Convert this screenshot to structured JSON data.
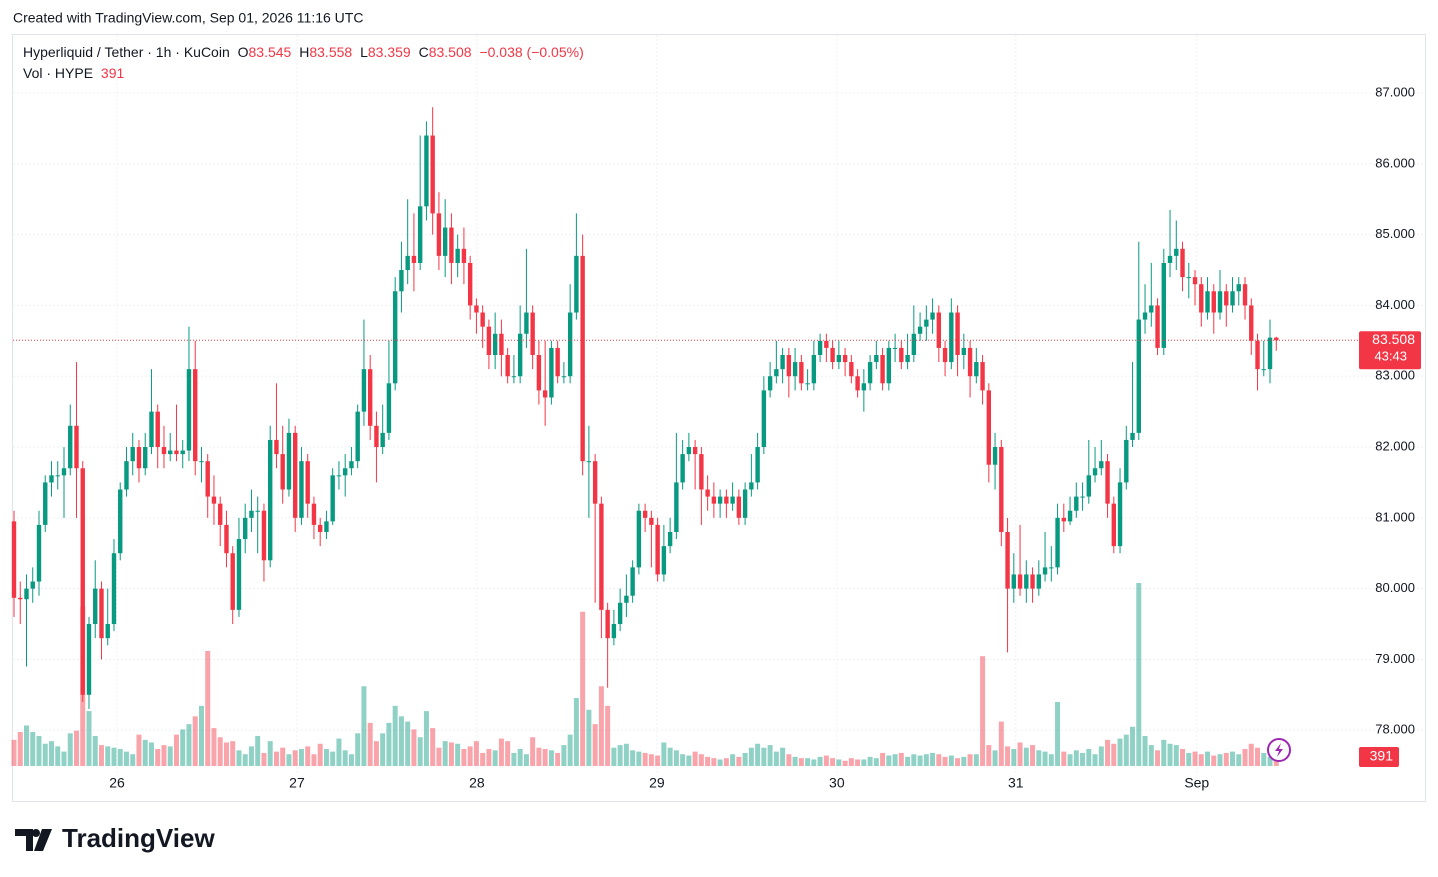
{
  "caption": "Created with TradingView.com, Sep 01, 2026 11:16 UTC",
  "brand": "TradingView",
  "chart_data": {
    "type": "candlestick",
    "title": "Hyperliquid / Tether · 1h · KuCoin",
    "ohlc_labels": [
      "O",
      "H",
      "L",
      "C"
    ],
    "change_label": "−0.038 (−0.05%)",
    "volume_title": "Vol · HYPE",
    "countdown": "43:43",
    "up_color": "#089981",
    "down_color": "#f23645",
    "grid": true,
    "ylim": [
      77.0,
      87.82
    ],
    "yticks": [
      {
        "value": 78,
        "label": "78.000"
      },
      {
        "value": 79,
        "label": "79.000"
      },
      {
        "value": 80,
        "label": "80.000"
      },
      {
        "value": 81,
        "label": "81.000"
      },
      {
        "value": 82,
        "label": "82.000"
      },
      {
        "value": 83,
        "label": "83.000"
      },
      {
        "value": 84,
        "label": "84.000"
      },
      {
        "value": 85,
        "label": "85.000"
      },
      {
        "value": 86,
        "label": "86.000"
      },
      {
        "value": 87,
        "label": "87.000"
      }
    ],
    "xlim": [
      -0.16,
      213.8
    ],
    "xticks": [
      {
        "value": 16.48,
        "label": "26"
      },
      {
        "value": 45.28,
        "label": "27"
      },
      {
        "value": 74.08,
        "label": "28"
      },
      {
        "value": 102.88,
        "label": "29"
      },
      {
        "value": 131.68,
        "label": "30"
      },
      {
        "value": 160.32,
        "label": "31"
      },
      {
        "value": 189.28,
        "label": "Sep"
      }
    ],
    "open": [
      80.95,
      79.87,
      79.85,
      80.0,
      80.1,
      80.9,
      81.5,
      81.6,
      81.6,
      81.7,
      82.3,
      81.7,
      78.5,
      79.5,
      80.0,
      79.3,
      79.5,
      80.5,
      81.4,
      81.8,
      82.0,
      81.7,
      82.0,
      82.5,
      82.0,
      81.9,
      81.95,
      81.9,
      81.95,
      83.1,
      81.8,
      81.8,
      81.3,
      81.2,
      80.9,
      80.5,
      79.7,
      80.7,
      81.0,
      81.1,
      81.1,
      80.4,
      82.1,
      81.9,
      81.4,
      82.2,
      81.0,
      81.8,
      81.2,
      80.9,
      80.8,
      80.95,
      81.6,
      81.6,
      81.7,
      81.8,
      82.5,
      83.1,
      82.3,
      82.0,
      82.2,
      82.9,
      84.2,
      84.5,
      84.7,
      84.6,
      85.4,
      86.4,
      85.3,
      84.7,
      85.1,
      84.6,
      84.8,
      84.6,
      84.0,
      83.9,
      83.7,
      83.3,
      83.6,
      83.3,
      83.0,
      83.0,
      83.6,
      83.9,
      83.3,
      82.8,
      82.7,
      83.4,
      83.0,
      83.0,
      83.9,
      84.7,
      81.8,
      81.8,
      81.2,
      79.7,
      79.3,
      79.5,
      79.8,
      79.9,
      80.3,
      81.1,
      81.0,
      80.9,
      80.2,
      80.6,
      80.8,
      81.5,
      81.9,
      82.0,
      81.9,
      81.4,
      81.3,
      81.2,
      81.3,
      81.2,
      81.3,
      81.0,
      81.4,
      81.5,
      82.0,
      82.8,
      83.0,
      83.1,
      83.3,
      83.0,
      83.2,
      82.9,
      82.9,
      83.3,
      83.5,
      83.4,
      83.2,
      83.3,
      83.2,
      83.0,
      82.8,
      82.9,
      83.2,
      83.3,
      82.9,
      83.4,
      83.4,
      83.2,
      83.3,
      83.6,
      83.7,
      83.8,
      83.9,
      83.4,
      83.2,
      83.9,
      83.3,
      83.4,
      83.0,
      83.2,
      82.8,
      81.75,
      82.0,
      80.8,
      80.0,
      80.2,
      80.0,
      80.2,
      80.0,
      80.2,
      80.3,
      80.3,
      81.0,
      80.95,
      81.1,
      81.3,
      81.3,
      81.6,
      81.7,
      81.8,
      81.2,
      80.6,
      81.5,
      82.1,
      82.2,
      83.8,
      83.9,
      84.0,
      83.4,
      84.6,
      84.7,
      84.8,
      84.4,
      84.4,
      84.3,
      83.9,
      84.2,
      83.9,
      84.2,
      84.0,
      84.2,
      84.3,
      84.0,
      83.5,
      83.1,
      83.1,
      83.545
    ],
    "high": [
      81.1,
      80.1,
      80.2,
      80.3,
      81.1,
      81.6,
      81.8,
      81.8,
      82.0,
      82.6,
      83.2,
      81.8,
      79.6,
      80.4,
      80.1,
      80.0,
      80.7,
      81.5,
      82.0,
      82.2,
      82.1,
      82.2,
      83.1,
      82.6,
      82.3,
      82.2,
      82.6,
      82.1,
      83.7,
      83.5,
      82.0,
      81.9,
      81.6,
      81.3,
      81.1,
      80.6,
      81.0,
      81.2,
      81.4,
      81.3,
      81.2,
      82.3,
      82.9,
      82.3,
      82.4,
      82.3,
      82.0,
      81.9,
      81.3,
      81.0,
      81.1,
      81.7,
      81.8,
      81.9,
      82.0,
      82.6,
      83.8,
      83.3,
      82.5,
      82.6,
      83.5,
      84.4,
      84.9,
      85.5,
      85.3,
      86.4,
      86.6,
      86.8,
      85.6,
      85.5,
      85.3,
      85.0,
      85.1,
      84.7,
      84.1,
      84.0,
      83.8,
      83.9,
      83.8,
      83.4,
      83.3,
      84.0,
      84.8,
      84.0,
      83.5,
      83.5,
      83.5,
      83.5,
      83.2,
      84.3,
      85.3,
      85.0,
      82.3,
      81.9,
      81.3,
      79.8,
      79.7,
      80.0,
      80.2,
      80.4,
      81.2,
      81.2,
      81.1,
      81.0,
      80.9,
      81.0,
      82.2,
      82.1,
      82.2,
      82.1,
      82.0,
      81.6,
      81.5,
      81.4,
      81.4,
      81.5,
      81.4,
      81.5,
      81.9,
      82.2,
      83.0,
      83.2,
      83.5,
      83.4,
      83.4,
      83.4,
      83.3,
      83.1,
      83.5,
      83.6,
      83.6,
      83.5,
      83.5,
      83.4,
      83.3,
      83.1,
      83.1,
      83.3,
      83.5,
      83.4,
      83.5,
      83.6,
      83.5,
      83.6,
      84.0,
      83.9,
      84.0,
      84.1,
      84.0,
      83.5,
      84.1,
      84.0,
      83.6,
      83.5,
      83.4,
      83.3,
      82.9,
      82.2,
      82.1,
      81.0,
      80.5,
      80.9,
      80.4,
      80.3,
      80.4,
      80.8,
      80.6,
      81.2,
      81.2,
      81.3,
      81.5,
      81.5,
      82.1,
      82.0,
      82.1,
      81.9,
      81.3,
      81.7,
      82.3,
      83.2,
      84.9,
      84.3,
      84.6,
      84.1,
      84.8,
      85.35,
      85.2,
      84.9,
      84.6,
      84.5,
      84.4,
      84.4,
      84.3,
      84.5,
      84.3,
      84.4,
      84.4,
      84.4,
      84.1,
      83.6,
      83.5,
      83.8,
      83.558
    ],
    "low": [
      79.6,
      79.5,
      78.9,
      79.8,
      79.9,
      80.8,
      81.3,
      81.4,
      81.0,
      81.6,
      81.0,
      78.4,
      78.3,
      79.3,
      79.0,
      79.2,
      79.4,
      80.4,
      81.3,
      81.6,
      81.5,
      81.6,
      81.9,
      81.7,
      81.7,
      81.8,
      81.8,
      81.7,
      81.8,
      81.6,
      81.5,
      81.0,
      80.9,
      80.6,
      80.3,
      79.5,
      79.6,
      80.5,
      80.8,
      80.5,
      80.1,
      80.3,
      81.7,
      81.2,
      81.3,
      80.8,
      80.9,
      81.0,
      80.7,
      80.6,
      80.7,
      80.9,
      81.4,
      81.3,
      81.6,
      81.7,
      82.3,
      82.1,
      81.5,
      81.9,
      82.1,
      82.8,
      83.9,
      84.3,
      84.2,
      84.5,
      85.2,
      85.0,
      84.5,
      84.4,
      84.3,
      84.4,
      84.3,
      83.8,
      83.6,
      83.4,
      83.1,
      83.1,
      83.0,
      82.9,
      82.9,
      82.9,
      83.4,
      83.1,
      82.6,
      82.3,
      82.6,
      82.9,
      82.9,
      82.9,
      83.8,
      81.6,
      81.0,
      79.8,
      79.3,
      78.6,
      79.2,
      79.4,
      79.6,
      79.8,
      80.2,
      80.8,
      80.3,
      80.1,
      80.1,
      80.5,
      80.7,
      81.4,
      81.8,
      81.4,
      80.9,
      81.1,
      81.0,
      81.0,
      81.0,
      81.1,
      80.9,
      80.9,
      81.3,
      81.4,
      81.9,
      82.7,
      82.9,
      82.9,
      82.7,
      82.8,
      82.8,
      82.8,
      82.8,
      83.2,
      83.2,
      83.1,
      83.1,
      83.0,
      82.9,
      82.7,
      82.5,
      82.8,
      83.1,
      82.8,
      82.8,
      83.2,
      83.1,
      83.1,
      83.2,
      83.5,
      83.5,
      83.6,
      83.2,
      83.0,
      83.1,
      83.0,
      83.1,
      82.7,
      82.9,
      82.6,
      81.5,
      81.4,
      80.6,
      79.1,
      79.8,
      79.9,
      79.8,
      79.8,
      79.9,
      80.1,
      80.1,
      80.2,
      80.8,
      80.9,
      81.0,
      81.1,
      81.2,
      81.5,
      81.6,
      81.0,
      80.5,
      80.5,
      81.4,
      82.0,
      82.1,
      83.6,
      83.7,
      83.3,
      83.3,
      84.4,
      84.5,
      84.2,
      84.1,
      84.0,
      83.7,
      83.8,
      83.6,
      83.8,
      83.7,
      83.9,
      84.0,
      83.8,
      83.3,
      82.8,
      83.0,
      82.9,
      83.359
    ],
    "close": [
      79.87,
      79.85,
      80.0,
      80.1,
      80.9,
      81.5,
      81.6,
      81.6,
      81.7,
      82.3,
      81.7,
      78.5,
      79.5,
      80.0,
      79.3,
      79.5,
      80.5,
      81.4,
      81.8,
      82.0,
      81.7,
      82.0,
      82.5,
      82.0,
      81.9,
      81.95,
      81.9,
      81.95,
      83.1,
      81.8,
      81.8,
      81.3,
      81.2,
      80.9,
      80.5,
      79.7,
      80.7,
      81.0,
      81.1,
      81.1,
      80.4,
      82.1,
      81.9,
      81.4,
      82.2,
      81.0,
      81.8,
      81.2,
      80.9,
      80.8,
      80.95,
      81.6,
      81.6,
      81.7,
      81.8,
      82.5,
      83.1,
      82.3,
      82.0,
      82.2,
      82.9,
      84.2,
      84.5,
      84.7,
      84.6,
      85.4,
      86.4,
      85.3,
      84.7,
      85.1,
      84.6,
      84.8,
      84.6,
      84.0,
      83.9,
      83.7,
      83.3,
      83.6,
      83.3,
      83.0,
      83.0,
      83.6,
      83.9,
      83.3,
      82.8,
      82.7,
      83.4,
      83.0,
      83.0,
      83.9,
      84.7,
      81.8,
      81.8,
      81.2,
      79.7,
      79.3,
      79.5,
      79.8,
      79.9,
      80.3,
      81.1,
      81.0,
      80.9,
      80.2,
      80.6,
      80.8,
      81.5,
      81.9,
      82.0,
      81.9,
      81.4,
      81.3,
      81.2,
      81.3,
      81.2,
      81.3,
      81.0,
      81.4,
      81.5,
      82.0,
      82.8,
      83.0,
      83.1,
      83.3,
      83.0,
      83.2,
      82.9,
      82.9,
      83.3,
      83.5,
      83.4,
      83.2,
      83.3,
      83.2,
      83.0,
      82.8,
      82.9,
      83.2,
      83.3,
      82.9,
      83.4,
      83.4,
      83.2,
      83.3,
      83.6,
      83.7,
      83.8,
      83.9,
      83.4,
      83.2,
      83.9,
      83.3,
      83.4,
      83.0,
      83.2,
      82.8,
      81.75,
      82.0,
      80.8,
      80.0,
      80.2,
      80.0,
      80.2,
      80.0,
      80.2,
      80.3,
      80.3,
      81.0,
      80.95,
      81.1,
      81.3,
      81.3,
      81.6,
      81.7,
      81.8,
      81.2,
      80.6,
      81.5,
      82.1,
      82.2,
      83.8,
      83.9,
      84.0,
      83.4,
      84.6,
      84.7,
      84.8,
      84.4,
      84.4,
      84.3,
      83.9,
      84.2,
      83.9,
      84.2,
      84.0,
      84.2,
      84.3,
      84.0,
      83.5,
      83.1,
      83.1,
      83.545,
      83.508
    ],
    "volume": [
      2000,
      2600,
      3100,
      2600,
      2300,
      1700,
      1900,
      1500,
      1100,
      2500,
      2700,
      12200,
      4200,
      2300,
      1600,
      1500,
      1400,
      1300,
      1100,
      900,
      2400,
      2000,
      1800,
      1300,
      1600,
      1500,
      2400,
      2800,
      3200,
      3800,
      4600,
      8800,
      2900,
      2200,
      1800,
      1900,
      1200,
      900,
      1500,
      2300,
      1000,
      1900,
      1100,
      1400,
      900,
      1200,
      1300,
      1500,
      900,
      1700,
      1300,
      1100,
      2100,
      1200,
      900,
      2500,
      6100,
      3300,
      1900,
      2500,
      3300,
      4600,
      3800,
      3400,
      2800,
      2200,
      4200,
      2900,
      1400,
      1900,
      1800,
      1700,
      1300,
      1500,
      1900,
      1000,
      1300,
      1200,
      2100,
      1900,
      1000,
      1300,
      900,
      2200,
      1400,
      1300,
      1200,
      1000,
      1600,
      2400,
      5200,
      11800,
      4300,
      3200,
      6100,
      4600,
      1400,
      1600,
      1700,
      1200,
      1100,
      1000,
      900,
      800,
      1800,
      1400,
      1200,
      900,
      800,
      1100,
      900,
      700,
      600,
      500,
      600,
      900,
      700,
      1000,
      1400,
      1700,
      1400,
      1600,
      1100,
      1400,
      900,
      700,
      600,
      600,
      500,
      700,
      800,
      600,
      500,
      400,
      600,
      500,
      500,
      700,
      600,
      1000,
      800,
      900,
      1000,
      700,
      900,
      800,
      900,
      1000,
      900,
      700,
      800,
      600,
      700,
      900,
      900,
      8400,
      1600,
      1200,
      3400,
      1500,
      1300,
      1800,
      1400,
      1600,
      1200,
      1100,
      900,
      4900,
      1100,
      900,
      1200,
      1000,
      1300,
      900,
      1500,
      2000,
      1700,
      2100,
      2400,
      3000,
      14000,
      2300,
      1600,
      1200,
      2000,
      1700,
      1600,
      1300,
      1000,
      1100,
      900,
      1100,
      800,
      900,
      1000,
      1100,
      900,
      1300,
      1700,
      1400,
      1000,
      700,
      391
    ]
  }
}
